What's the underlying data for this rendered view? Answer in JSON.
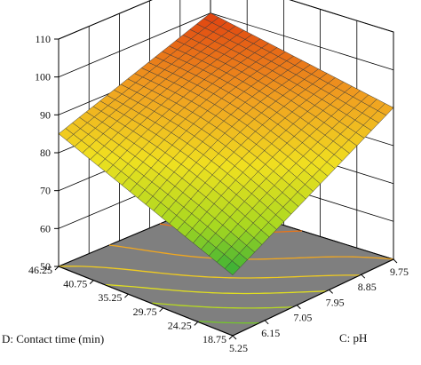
{
  "chart_data": {
    "type": "surface3d",
    "title": "",
    "zlabel": "",
    "xlabel": "D: Contact time (min)",
    "ylabel": "C: pH",
    "x_ticks": [
      "46.25",
      "40.75",
      "35.25",
      "29.75",
      "24.25",
      "18.75"
    ],
    "y_ticks": [
      "5.25",
      "6.15",
      "7.05",
      "7.95",
      "8.85",
      "9.75"
    ],
    "z_ticks": [
      "50",
      "60",
      "70",
      "80",
      "90",
      "100",
      "110"
    ],
    "xlim": [
      18.75,
      46.25
    ],
    "ylim": [
      5.25,
      9.75
    ],
    "zlim": [
      50,
      110
    ],
    "corner_values": {
      "time_46.25_pH_5.25": 85,
      "time_46.25_pH_9.75": 100,
      "time_18.75_pH_5.25": 66,
      "time_18.75_pH_9.75": 90
    },
    "grid_steps": 22,
    "contour_levels": [
      70,
      75,
      80,
      85,
      90,
      95
    ],
    "floor_color": "#7f7f7f",
    "colormap": [
      "#10a040",
      "#a8d820",
      "#f0e020",
      "#f0a020",
      "#e04010"
    ]
  }
}
